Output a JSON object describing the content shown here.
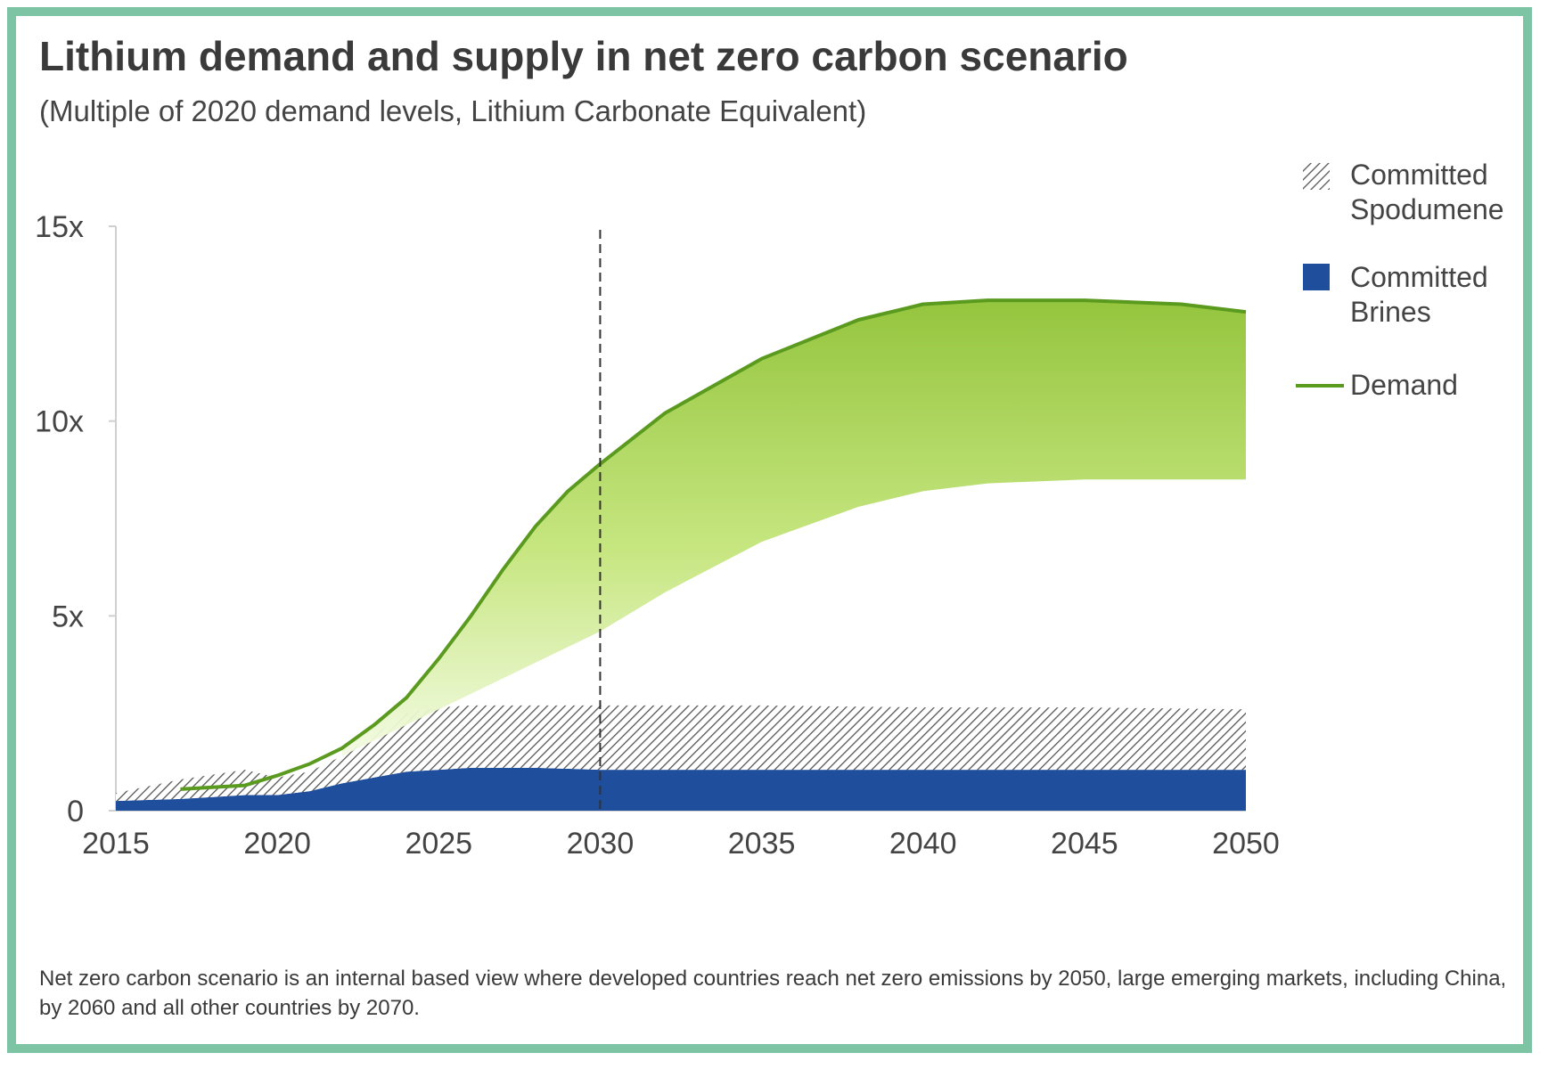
{
  "colors": {
    "frame": "#7dc4a5",
    "demand_line": "#5a9a1e",
    "demand_fill": "#9ccc3c",
    "brines": "#1f4f9c",
    "spodumene_hatch": "#555555",
    "reference_line": "#333333"
  },
  "chart_data": {
    "type": "area",
    "title": "Lithium demand and supply in net zero carbon scenario",
    "subtitle": "(Multiple of 2020 demand levels, Lithium Carbonate Equivalent)",
    "xlabel": "",
    "ylabel": "",
    "xlim": [
      2015,
      2050
    ],
    "ylim": [
      0,
      15
    ],
    "x_ticks": [
      2015,
      2020,
      2025,
      2030,
      2035,
      2040,
      2045,
      2050
    ],
    "y_ticks": [
      {
        "value": 0,
        "label": "0"
      },
      {
        "value": 5,
        "label": "5x"
      },
      {
        "value": 10,
        "label": "10x"
      },
      {
        "value": 15,
        "label": "15x"
      }
    ],
    "reference_line": {
      "x": 2030,
      "style": "dashed"
    },
    "legend_position": "right",
    "series": [
      {
        "name": "Committed Brines",
        "kind": "stacked-area",
        "x": [
          2015,
          2017,
          2019,
          2020,
          2021,
          2022,
          2023,
          2024,
          2025,
          2026,
          2028,
          2030,
          2035,
          2040,
          2045,
          2050
        ],
        "y": [
          0.25,
          0.3,
          0.4,
          0.4,
          0.5,
          0.7,
          0.85,
          1.0,
          1.05,
          1.1,
          1.1,
          1.05,
          1.05,
          1.05,
          1.05,
          1.05
        ]
      },
      {
        "name": "Committed Spodumene",
        "kind": "stacked-area",
        "x": [
          2015,
          2017,
          2019,
          2020,
          2021,
          2022,
          2023,
          2024,
          2025,
          2026,
          2028,
          2030,
          2035,
          2040,
          2045,
          2050
        ],
        "y": [
          0.2,
          0.5,
          0.65,
          0.45,
          0.5,
          0.7,
          1.1,
          1.5,
          1.6,
          1.6,
          1.6,
          1.65,
          1.65,
          1.6,
          1.6,
          1.55
        ]
      },
      {
        "name": "Demand",
        "kind": "line",
        "x": [
          2017,
          2019,
          2020,
          2021,
          2022,
          2023,
          2024,
          2025,
          2026,
          2027,
          2028,
          2029,
          2030,
          2032,
          2035,
          2038,
          2040,
          2042,
          2045,
          2048,
          2050
        ],
        "y": [
          0.55,
          0.65,
          0.9,
          1.2,
          1.6,
          2.2,
          2.9,
          3.9,
          5.0,
          6.2,
          7.3,
          8.2,
          8.9,
          10.2,
          11.6,
          12.6,
          13.0,
          13.1,
          13.1,
          13.0,
          12.8
        ],
        "range_low": {
          "x": [
            2022,
            2024,
            2026,
            2028,
            2030,
            2032,
            2035,
            2038,
            2040,
            2042,
            2045,
            2050
          ],
          "y": [
            1.4,
            2.2,
            3.0,
            3.8,
            4.6,
            5.6,
            6.9,
            7.8,
            8.2,
            8.4,
            8.5,
            8.5
          ]
        }
      }
    ]
  },
  "legend": [
    {
      "key": "spodumene",
      "line1": "Committed",
      "line2": "Spodumene"
    },
    {
      "key": "brines",
      "line1": "Committed",
      "line2": "Brines"
    },
    {
      "key": "demand",
      "line1": "Demand",
      "line2": ""
    }
  ],
  "footnote": "Net zero carbon scenario is an internal based view where developed countries reach net zero emissions by 2050, large emerging markets, including China, by 2060 and all other countries by 2070."
}
